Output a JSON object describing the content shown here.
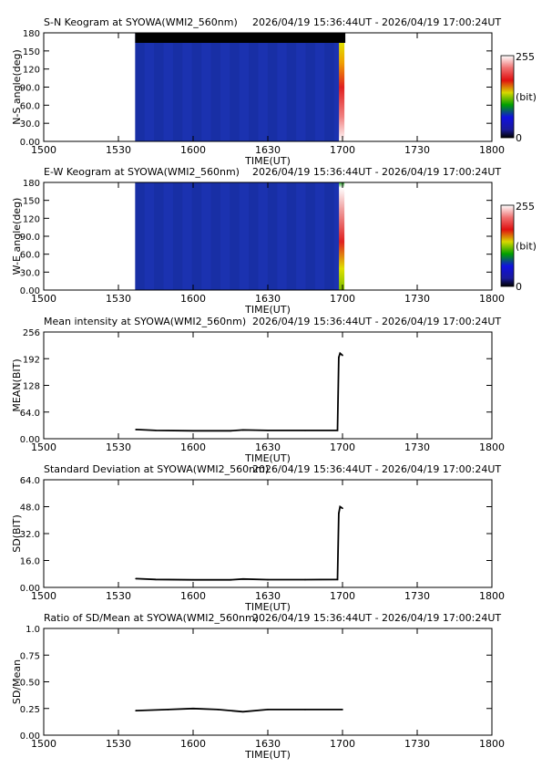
{
  "time_range_text": "2026/04/19 15:36:44UT - 2026/04/19 17:00:24UT",
  "x_tick_labels": [
    "1500",
    "1530",
    "1600",
    "1630",
    "1700",
    "1730",
    "1800"
  ],
  "x_axis_label": "TIME(UT)",
  "colorbar": {
    "max_label": "255",
    "mid_label": "(bit)",
    "min_label": "0"
  },
  "chart_data": [
    {
      "type": "heatmap",
      "title": "S-N Keogram at SYOWA(WMI2_560nm)",
      "xlabel": "TIME(UT)",
      "ylabel": "N-S angle(deg)",
      "x_range": [
        "15:00",
        "18:00"
      ],
      "ylim": [
        0,
        180
      ],
      "y_tick_labels": [
        "0.00",
        "30.0",
        "60.0",
        "90.0",
        "120",
        "150",
        "180"
      ],
      "data_start": "15:36:44",
      "data_end": "17:00:24",
      "background_value": "low (dark blue)",
      "final_column": "bright (yellow-red)",
      "colorbar_range": [
        0,
        255
      ],
      "colorbar_unit": "(bit)"
    },
    {
      "type": "heatmap",
      "title": "E-W Keogram at SYOWA(WMI2_560nm)",
      "xlabel": "TIME(UT)",
      "ylabel": "W-E angle(deg)",
      "x_range": [
        "15:00",
        "18:00"
      ],
      "ylim": [
        0,
        180
      ],
      "y_tick_labels": [
        "0.00",
        "30.0",
        "60.0",
        "90.0",
        "120",
        "150",
        "180"
      ],
      "data_start": "15:36:44",
      "data_end": "17:00:24",
      "background_value": "low (dark blue)",
      "final_column": "bright (green-red)",
      "colorbar_range": [
        0,
        255
      ],
      "colorbar_unit": "(bit)"
    },
    {
      "type": "line",
      "title": "Mean intensity at SYOWA(WMI2_560nm)",
      "xlabel": "TIME(UT)",
      "ylabel": "MEAN(BIT)",
      "ylim": [
        0,
        256
      ],
      "y_tick_labels": [
        "0.00",
        "64.0",
        "128",
        "192",
        "256"
      ],
      "x": [
        "15:37",
        "15:45",
        "16:00",
        "16:15",
        "16:20",
        "16:30",
        "16:45",
        "16:58",
        "16:58:30",
        "16:59",
        "17:00"
      ],
      "values": [
        22,
        20,
        19,
        19,
        21,
        20,
        20,
        20,
        195,
        205,
        200
      ]
    },
    {
      "type": "line",
      "title": "Standard Deviation at SYOWA(WMI2_560nm)",
      "xlabel": "TIME(UT)",
      "ylabel": "SD(BIT)",
      "ylim": [
        0,
        64
      ],
      "y_tick_labels": [
        "0.00",
        "16.0",
        "32.0",
        "48.0",
        "64.0"
      ],
      "x": [
        "15:37",
        "15:45",
        "16:00",
        "16:15",
        "16:20",
        "16:30",
        "16:45",
        "16:58",
        "16:58:30",
        "16:59",
        "17:00"
      ],
      "values": [
        5.2,
        4.7,
        4.5,
        4.5,
        5.0,
        4.6,
        4.6,
        4.7,
        44,
        48,
        47
      ]
    },
    {
      "type": "line",
      "title": "Ratio of SD/Mean at SYOWA(WMI2_560nm)",
      "xlabel": "TIME(UT)",
      "ylabel": "SD/Mean",
      "ylim": [
        0,
        1.0
      ],
      "y_tick_labels": [
        "0.00",
        "0.25",
        "0.50",
        "0.75",
        "1.0"
      ],
      "x": [
        "15:37",
        "15:50",
        "16:00",
        "16:10",
        "16:20",
        "16:30",
        "16:45",
        "17:00"
      ],
      "values": [
        0.23,
        0.24,
        0.25,
        0.24,
        0.22,
        0.24,
        0.24,
        0.24
      ]
    }
  ]
}
